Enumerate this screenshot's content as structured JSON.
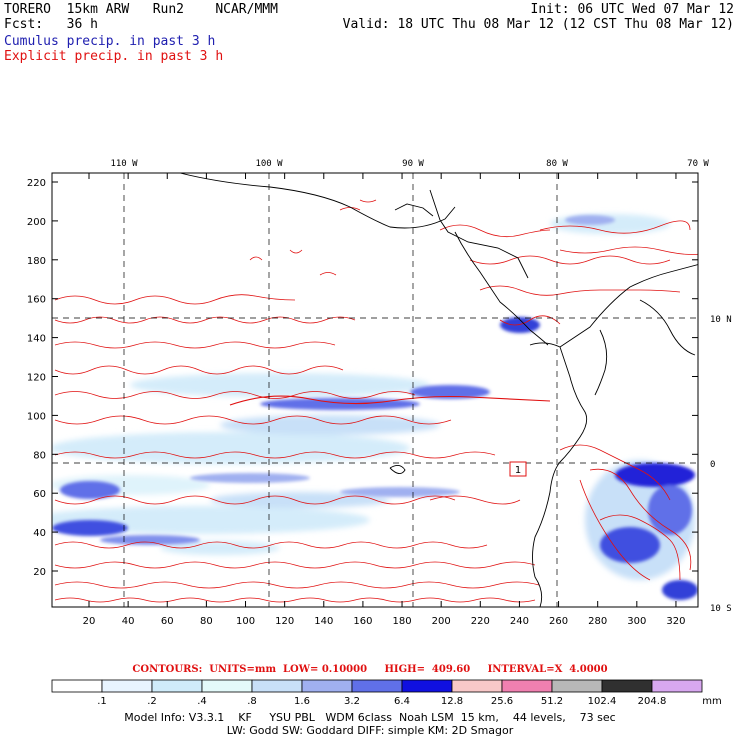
{
  "header": {
    "line1_left": "TORERO  15km ARW   Run2    NCAR/MMM",
    "line1_right": "Init: 06 UTC Wed 07 Mar 12",
    "line2_left": "Fcst:   36 h",
    "line2_right": "Valid: 18 UTC Thu 08 Mar 12 (12 CST Thu 08 Mar 12)",
    "field1": "Cumulus precip. in past 3 h",
    "field2": "Explicit precip. in past 3 h"
  },
  "map": {
    "top_lon_labels": [
      "110 W",
      "100 W",
      "90 W",
      "80 W",
      "70 W"
    ],
    "right_lat_labels": [
      "10 N",
      "0",
      "10 S"
    ],
    "y_ticks": [
      "220",
      "200",
      "180",
      "160",
      "140",
      "120",
      "100",
      "80",
      "60",
      "40",
      "20"
    ],
    "x_ticks": [
      "20",
      "40",
      "60",
      "80",
      "100",
      "120",
      "140",
      "160",
      "180",
      "200",
      "220",
      "240",
      "260",
      "280",
      "300",
      "320"
    ],
    "box_label": "1",
    "colors": {
      "contour": "#e01010",
      "coast": "#000000",
      "grid": "#000000"
    }
  },
  "contour_info": "CONTOURS:  UNITS=mm  LOW= 0.10000     HIGH=  409.60     INTERVAL=X  4.0000",
  "colorbar": {
    "labels": [
      ".1",
      ".2",
      ".4",
      ".8",
      "1.6",
      "3.2",
      "6.4",
      "12.8",
      "25.6",
      "51.2",
      "102.4",
      "204.8"
    ],
    "unit": "mm",
    "colors": [
      "#ffffff",
      "#e8f4ff",
      "#d0ecfa",
      "#e4fafa",
      "#c8e0f8",
      "#a0b0f0",
      "#6070e8",
      "#1010e0",
      "#f8c8c8",
      "#f080b0",
      "#b8b8b8",
      "#303030",
      "#d8a8f0"
    ]
  },
  "footer": {
    "line1": "Model Info: V3.3.1    KF     YSU PBL   WDM 6class  Noah LSM  15 km,    44 levels,    73 sec",
    "line2": "LW: Godd SW: Goddard DIFF: simple KM: 2D Smagor"
  }
}
